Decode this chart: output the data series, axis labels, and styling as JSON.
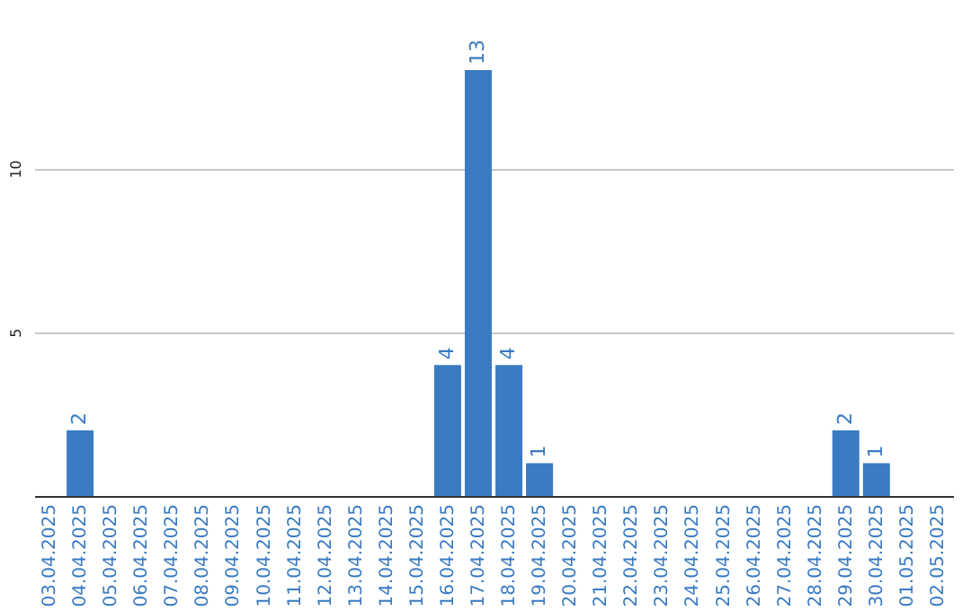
{
  "chart_data": {
    "type": "bar",
    "categories": [
      "03.04.2025",
      "04.04.2025",
      "05.04.2025",
      "06.04.2025",
      "07.04.2025",
      "08.04.2025",
      "09.04.2025",
      "10.04.2025",
      "11.04.2025",
      "12.04.2025",
      "13.04.2025",
      "14.04.2025",
      "15.04.2025",
      "16.04.2025",
      "17.04.2025",
      "18.04.2025",
      "19.04.2025",
      "20.04.2025",
      "21.04.2025",
      "22.04.2025",
      "23.04.2025",
      "24.04.2025",
      "25.04.2025",
      "26.04.2025",
      "27.04.2025",
      "28.04.2025",
      "29.04.2025",
      "30.04.2025",
      "01.05.2025",
      "02.05.2025"
    ],
    "values": [
      0,
      2,
      0,
      0,
      0,
      0,
      0,
      0,
      0,
      0,
      0,
      0,
      0,
      4,
      13,
      4,
      1,
      0,
      0,
      0,
      0,
      0,
      0,
      0,
      0,
      0,
      2,
      1,
      0,
      0
    ],
    "value_labels": [
      null,
      "2",
      null,
      null,
      null,
      null,
      null,
      null,
      null,
      null,
      null,
      null,
      null,
      "4",
      "13",
      "4",
      "1",
      null,
      null,
      null,
      null,
      null,
      null,
      null,
      null,
      null,
      "2",
      "1",
      null,
      null
    ],
    "color": "#3a7bc2",
    "ylim": [
      0,
      13
    ],
    "yticks": [
      5,
      10
    ],
    "grid": "y"
  }
}
